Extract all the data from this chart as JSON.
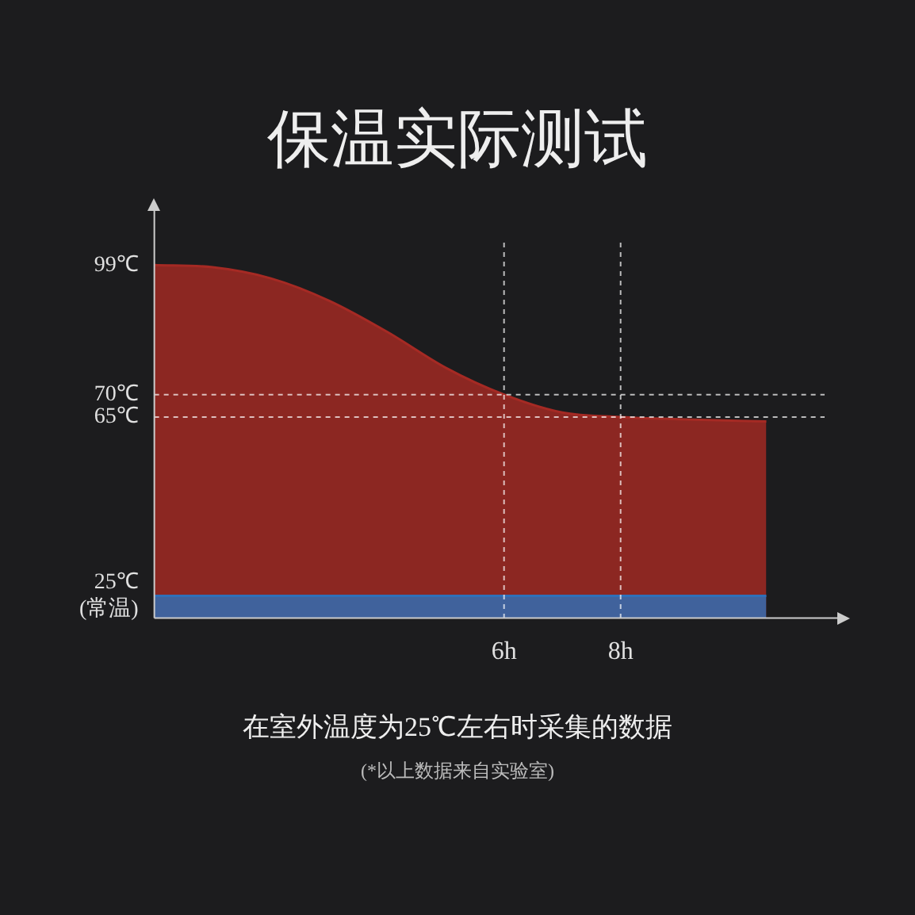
{
  "chart_data": {
    "type": "area",
    "title": "保温实际测试",
    "x": [
      0,
      1,
      2,
      3,
      4,
      5,
      6,
      7,
      8,
      9,
      10.5
    ],
    "series": [
      {
        "color": "#a52a24",
        "values": [
          99,
          98.5,
          96,
          91,
          84,
          76,
          70,
          66,
          65,
          64.5,
          64
        ]
      },
      {
        "color": "#2f6fb8",
        "x": [
          0,
          10.5
        ],
        "values": [
          25,
          25
        ]
      }
    ],
    "xlim": [
      0,
      11.5
    ],
    "xticks": [
      {
        "value": 6,
        "label": "6h"
      },
      {
        "value": 8,
        "label": "8h"
      }
    ],
    "ylim": [
      20,
      104
    ],
    "yticks": [
      {
        "value": 25,
        "label": "25℃ (常温)"
      },
      {
        "value": 65,
        "label": "65℃"
      },
      {
        "value": 70,
        "label": "70℃"
      },
      {
        "value": 99,
        "label": "99℃"
      }
    ],
    "ref_lines": [
      {
        "axis": "y",
        "value": 70,
        "line_style": "dashed"
      },
      {
        "axis": "y",
        "value": 65,
        "line_style": "dashed"
      },
      {
        "axis": "x",
        "value": 6,
        "line_style": "dashed"
      },
      {
        "axis": "x",
        "value": 8,
        "line_style": "dashed"
      }
    ],
    "legend": false,
    "annotations": [
      "在室外温度为25℃左右时采集的数据",
      "(*以上数据来自实验室)"
    ]
  }
}
